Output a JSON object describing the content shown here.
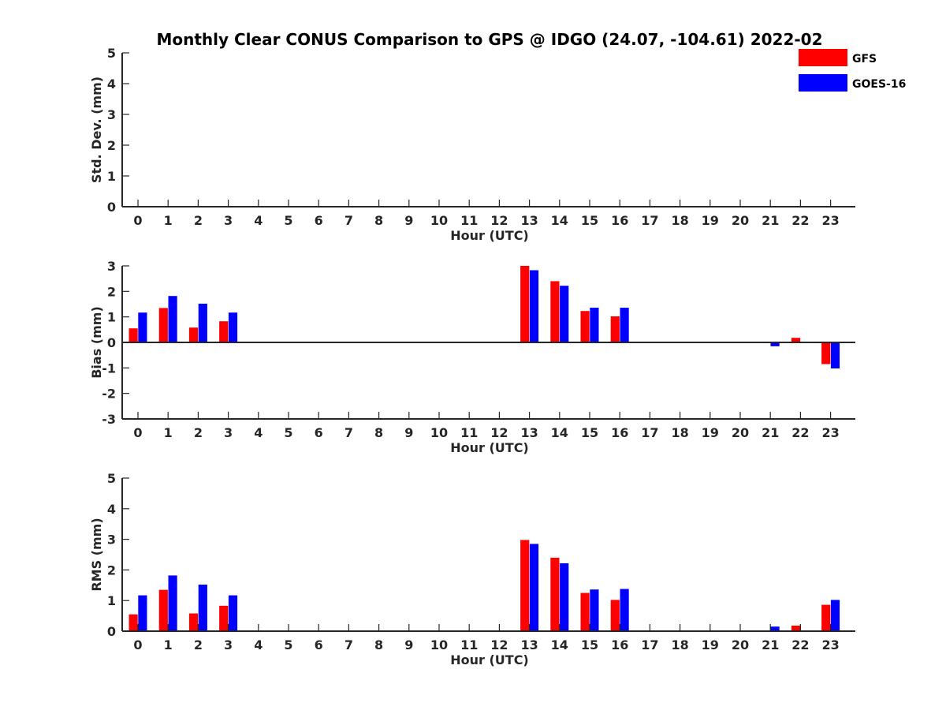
{
  "figure_title": "Monthly Clear CONUS Comparison to GPS @ IDGO (24.07, -104.61) 2022-02",
  "legend": [
    {
      "label": "GFS",
      "color": "#ff0000"
    },
    {
      "label": "GOES-16",
      "color": "#0000ff"
    }
  ],
  "chart_data": [
    {
      "type": "bar",
      "xlabel": "Hour (UTC)",
      "ylabel": "Std. Dev. (mm)",
      "ylim": [
        0,
        5
      ],
      "yticks": [
        0,
        1,
        2,
        3,
        4,
        5
      ],
      "categories": [
        "0",
        "1",
        "2",
        "3",
        "4",
        "5",
        "6",
        "7",
        "8",
        "9",
        "10",
        "11",
        "12",
        "13",
        "14",
        "15",
        "16",
        "17",
        "18",
        "19",
        "20",
        "21",
        "22",
        "23"
      ],
      "series": [
        {
          "name": "GFS",
          "color": "#ff0000",
          "values": [
            0,
            0,
            0,
            0,
            0,
            0,
            0,
            0,
            0,
            0,
            0,
            0,
            0,
            0,
            0,
            0,
            0,
            0,
            0,
            0,
            0,
            0,
            0,
            0
          ]
        },
        {
          "name": "GOES-16",
          "color": "#0000ff",
          "values": [
            0,
            0,
            0,
            0,
            0,
            0,
            0,
            0,
            0,
            0,
            0,
            0,
            0,
            0,
            0,
            0,
            0,
            0,
            0,
            0,
            0,
            0,
            0,
            0
          ]
        }
      ],
      "zero_line": false
    },
    {
      "type": "bar",
      "xlabel": "Hour (UTC)",
      "ylabel": "Bias (mm)",
      "ylim": [
        -3,
        3
      ],
      "yticks": [
        -3,
        -2,
        -1,
        0,
        1,
        2,
        3
      ],
      "categories": [
        "0",
        "1",
        "2",
        "3",
        "4",
        "5",
        "6",
        "7",
        "8",
        "9",
        "10",
        "11",
        "12",
        "13",
        "14",
        "15",
        "16",
        "17",
        "18",
        "19",
        "20",
        "21",
        "22",
        "23"
      ],
      "series": [
        {
          "name": "GFS",
          "color": "#ff0000",
          "values": [
            0.55,
            1.35,
            0.58,
            0.83,
            0,
            0,
            0,
            0,
            0,
            0,
            0,
            0,
            0,
            3.0,
            2.4,
            1.23,
            1.02,
            0,
            0,
            0,
            0,
            0,
            0.18,
            -0.85
          ]
        },
        {
          "name": "GOES-16",
          "color": "#0000ff",
          "values": [
            1.17,
            1.82,
            1.52,
            1.17,
            0,
            0,
            0,
            0,
            0,
            0,
            0,
            0,
            0,
            2.83,
            2.22,
            1.36,
            1.36,
            0,
            0,
            0,
            0,
            -0.15,
            0.03,
            -1.02
          ]
        }
      ],
      "zero_line": true
    },
    {
      "type": "bar",
      "xlabel": "Hour (UTC)",
      "ylabel": "RMS (mm)",
      "ylim": [
        0,
        5
      ],
      "yticks": [
        0,
        1,
        2,
        3,
        4,
        5
      ],
      "categories": [
        "0",
        "1",
        "2",
        "3",
        "4",
        "5",
        "6",
        "7",
        "8",
        "9",
        "10",
        "11",
        "12",
        "13",
        "14",
        "15",
        "16",
        "17",
        "18",
        "19",
        "20",
        "21",
        "22",
        "23"
      ],
      "series": [
        {
          "name": "GFS",
          "color": "#ff0000",
          "values": [
            0.55,
            1.35,
            0.58,
            0.83,
            0,
            0,
            0,
            0,
            0,
            0,
            0,
            0,
            0,
            2.98,
            2.4,
            1.25,
            1.02,
            0,
            0,
            0,
            0,
            0,
            0.18,
            0.86
          ]
        },
        {
          "name": "GOES-16",
          "color": "#0000ff",
          "values": [
            1.17,
            1.82,
            1.52,
            1.17,
            0,
            0,
            0,
            0,
            0,
            0,
            0,
            0,
            0,
            2.85,
            2.22,
            1.36,
            1.38,
            0,
            0,
            0,
            0,
            0.15,
            0,
            1.02
          ]
        }
      ],
      "zero_line": false
    }
  ]
}
